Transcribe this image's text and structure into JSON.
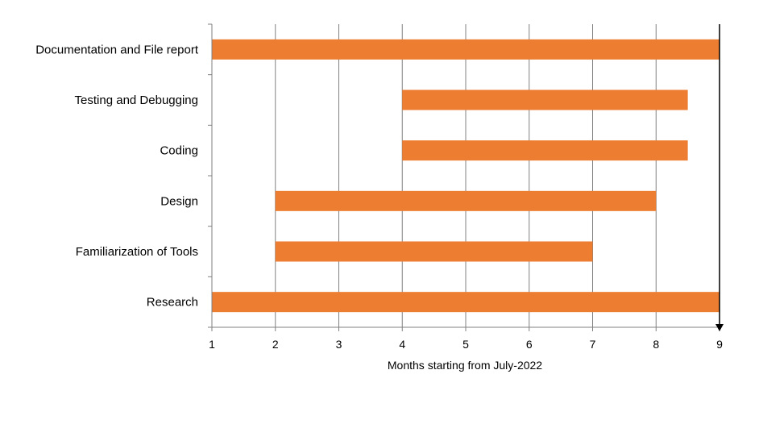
{
  "chart_data": {
    "type": "bar",
    "orientation": "horizontal-gantt",
    "title": "",
    "xlabel": "Months starting from July-2022",
    "ylabel": "",
    "xlim": [
      1,
      9
    ],
    "x_ticks": [
      "1",
      "2",
      "3",
      "4",
      "5",
      "6",
      "7",
      "8",
      "9"
    ],
    "grid": "vertical",
    "legend": "none",
    "bar_color": "#ED7D31",
    "categories": [
      "Documentation and File report",
      "Testing and Debugging",
      "Coding",
      "Design",
      "Familiarization of Tools",
      "Research"
    ],
    "series": [
      {
        "start": [
          1,
          4,
          4,
          2,
          2,
          1
        ],
        "end": [
          9,
          8.5,
          8.5,
          8,
          7,
          9
        ]
      }
    ]
  }
}
